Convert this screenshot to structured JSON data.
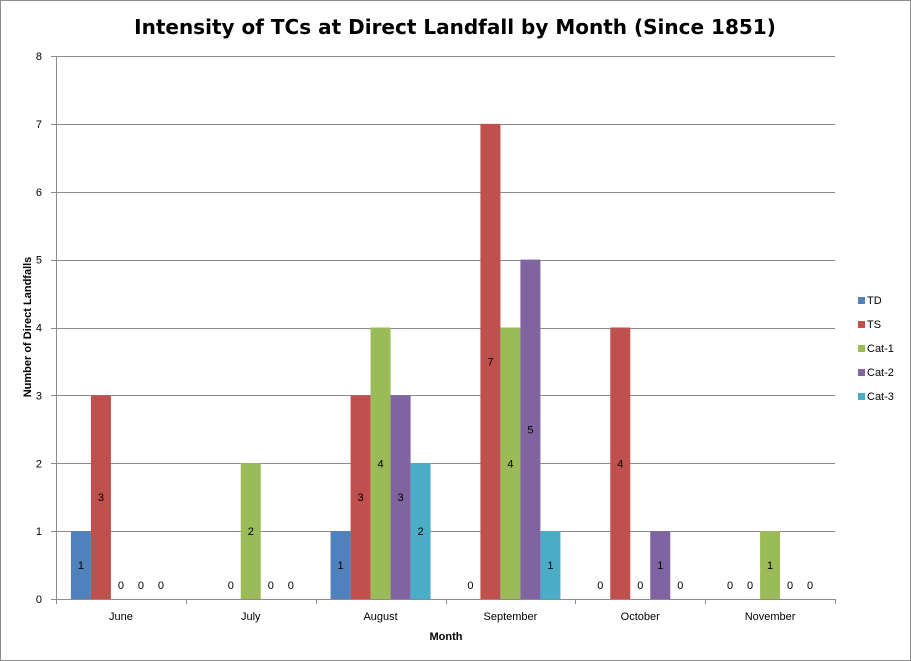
{
  "chart_data": {
    "type": "bar",
    "title": "Intensity of TCs at Direct Landfall by Month (Since 1851)",
    "xlabel": "Month",
    "ylabel": "Number of Direct Landfalls",
    "categories": [
      "June",
      "July",
      "August",
      "September",
      "October",
      "November"
    ],
    "ylim": [
      0,
      8
    ],
    "yticks": [
      "0",
      "1",
      "2",
      "3",
      "4",
      "5",
      "6",
      "7",
      "8"
    ],
    "grid": true,
    "legend_position": "right",
    "series": [
      {
        "name": "TD",
        "color": "#4f81bd",
        "values": [
          1,
          null,
          1,
          0,
          0,
          0
        ]
      },
      {
        "name": "TS",
        "color": "#c0504d",
        "values": [
          3,
          0,
          3,
          7,
          4,
          0
        ]
      },
      {
        "name": "Cat-1",
        "color": "#9bbb59",
        "values": [
          0,
          2,
          4,
          4,
          0,
          1
        ]
      },
      {
        "name": "Cat-2",
        "color": "#8064a2",
        "values": [
          0,
          0,
          3,
          5,
          1,
          0
        ]
      },
      {
        "name": "Cat-3",
        "color": "#4bacc6",
        "values": [
          0,
          0,
          2,
          1,
          0,
          0
        ]
      }
    ]
  }
}
